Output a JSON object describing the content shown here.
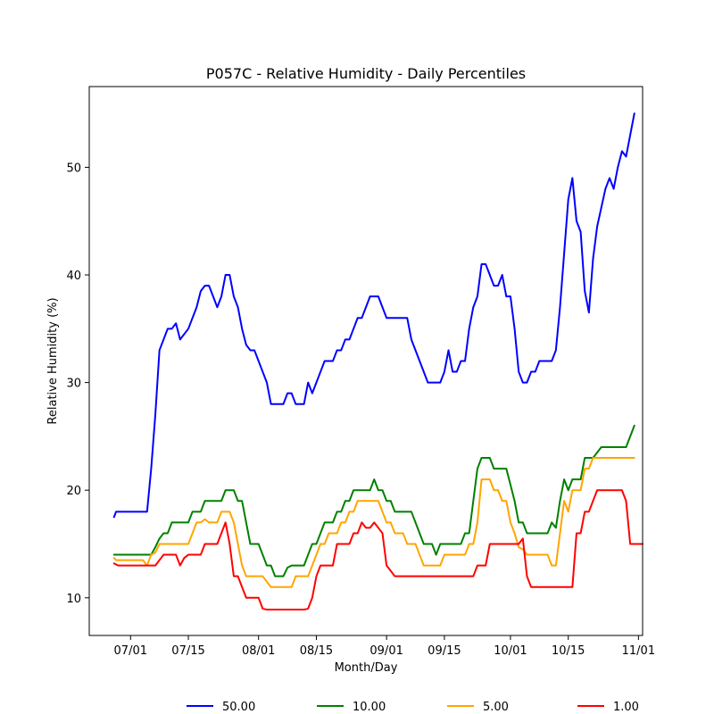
{
  "chart_data": {
    "type": "line",
    "title": "P057C - Relative Humidity - Daily Percentiles",
    "xlabel": "Month/Day",
    "ylabel": "Relative Humidity (%)",
    "x_unit": "day of year",
    "xlim": [
      172,
      306
    ],
    "ylim": [
      6.5,
      57.5
    ],
    "x_ticks": [
      {
        "value": 182,
        "label": "07/01"
      },
      {
        "value": 196,
        "label": "07/15"
      },
      {
        "value": 213,
        "label": "08/01"
      },
      {
        "value": 227,
        "label": "08/15"
      },
      {
        "value": 244,
        "label": "09/01"
      },
      {
        "value": 258,
        "label": "09/15"
      },
      {
        "value": 274,
        "label": "10/01"
      },
      {
        "value": 288,
        "label": "10/15"
      },
      {
        "value": 305,
        "label": "11/01"
      }
    ],
    "y_ticks": [
      {
        "value": 10,
        "label": "10"
      },
      {
        "value": 20,
        "label": "20"
      },
      {
        "value": 30,
        "label": "30"
      },
      {
        "value": 40,
        "label": "40"
      },
      {
        "value": 50,
        "label": "50"
      }
    ],
    "grid": false,
    "legend_position": "bottom-center",
    "series": [
      {
        "name": "50.00",
        "color": "#0000ff",
        "points": [
          [
            178,
            17.5
          ],
          [
            178.5,
            18
          ],
          [
            186,
            18
          ],
          [
            187,
            22
          ],
          [
            188,
            27
          ],
          [
            189,
            33
          ],
          [
            191,
            35
          ],
          [
            192,
            35
          ],
          [
            193,
            35.5
          ],
          [
            194,
            34
          ],
          [
            196,
            35
          ],
          [
            198,
            37
          ],
          [
            199,
            38.5
          ],
          [
            200,
            39
          ],
          [
            201,
            39
          ],
          [
            202,
            38
          ],
          [
            203,
            37
          ],
          [
            204,
            38
          ],
          [
            205,
            40
          ],
          [
            206,
            40
          ],
          [
            207,
            38
          ],
          [
            208,
            37
          ],
          [
            209,
            35
          ],
          [
            210,
            33.5
          ],
          [
            211,
            33
          ],
          [
            212,
            33
          ],
          [
            213,
            32
          ],
          [
            214,
            31
          ],
          [
            215,
            30
          ],
          [
            216,
            28
          ],
          [
            219,
            28
          ],
          [
            220,
            29
          ],
          [
            221,
            29
          ],
          [
            222,
            28
          ],
          [
            224,
            28
          ],
          [
            225,
            30
          ],
          [
            226,
            29
          ],
          [
            227,
            30
          ],
          [
            228,
            31
          ],
          [
            229,
            32
          ],
          [
            231,
            32
          ],
          [
            232,
            33
          ],
          [
            233,
            33
          ],
          [
            234,
            34
          ],
          [
            235,
            34
          ],
          [
            236,
            35
          ],
          [
            237,
            36
          ],
          [
            238,
            36
          ],
          [
            239,
            37
          ],
          [
            240,
            38
          ],
          [
            242,
            38
          ],
          [
            243,
            37
          ],
          [
            244,
            36
          ],
          [
            249,
            36
          ],
          [
            250,
            34
          ],
          [
            254,
            30
          ],
          [
            257,
            30
          ],
          [
            258,
            31
          ],
          [
            259,
            33
          ],
          [
            260,
            31
          ],
          [
            261,
            31
          ],
          [
            262,
            32
          ],
          [
            263,
            32
          ],
          [
            264,
            35
          ],
          [
            265,
            37
          ],
          [
            266,
            38
          ],
          [
            267,
            41
          ],
          [
            268,
            41
          ],
          [
            270,
            39
          ],
          [
            271,
            39
          ],
          [
            272,
            40
          ],
          [
            273,
            38
          ],
          [
            274,
            38
          ],
          [
            275,
            35
          ],
          [
            276,
            31
          ],
          [
            277,
            30
          ],
          [
            278,
            30
          ],
          [
            279,
            31
          ],
          [
            280,
            31
          ],
          [
            281,
            32
          ],
          [
            284,
            32
          ],
          [
            285,
            33
          ],
          [
            286,
            37
          ],
          [
            287,
            42
          ],
          [
            288,
            47
          ],
          [
            289,
            49
          ],
          [
            290,
            45
          ],
          [
            291,
            44
          ],
          [
            292,
            38.5
          ],
          [
            293,
            36.5
          ],
          [
            294,
            41.5
          ],
          [
            295,
            44.5
          ],
          [
            297,
            48
          ],
          [
            298,
            49
          ],
          [
            299,
            48
          ],
          [
            300,
            50
          ],
          [
            301,
            51.5
          ],
          [
            302,
            51
          ],
          [
            304,
            55
          ]
        ]
      },
      {
        "name": "10.00",
        "color": "#008000",
        "points": [
          [
            178,
            14
          ],
          [
            187,
            14
          ],
          [
            188,
            14.7
          ],
          [
            189,
            15.5
          ],
          [
            190,
            16
          ],
          [
            191,
            16
          ],
          [
            192,
            17
          ],
          [
            196,
            17
          ],
          [
            197,
            18
          ],
          [
            199,
            18
          ],
          [
            200,
            19
          ],
          [
            204,
            19
          ],
          [
            205,
            20
          ],
          [
            207,
            20
          ],
          [
            208,
            19
          ],
          [
            209,
            19
          ],
          [
            210,
            17
          ],
          [
            211,
            15
          ],
          [
            213,
            15
          ],
          [
            214,
            14
          ],
          [
            215,
            13
          ],
          [
            216,
            13
          ],
          [
            217,
            12
          ],
          [
            219,
            12
          ],
          [
            220,
            12.8
          ],
          [
            221,
            13
          ],
          [
            224,
            13
          ],
          [
            225,
            14
          ],
          [
            226,
            15
          ],
          [
            227,
            15
          ],
          [
            228,
            16
          ],
          [
            229,
            17
          ],
          [
            231,
            17
          ],
          [
            232,
            18
          ],
          [
            233,
            18
          ],
          [
            234,
            19
          ],
          [
            235,
            19
          ],
          [
            236,
            20
          ],
          [
            240,
            20
          ],
          [
            241,
            21
          ],
          [
            242,
            20
          ],
          [
            243,
            20
          ],
          [
            244,
            19
          ],
          [
            245,
            19
          ],
          [
            246,
            18
          ],
          [
            250,
            18
          ],
          [
            251,
            17
          ],
          [
            253,
            15
          ],
          [
            255,
            15
          ],
          [
            256,
            14
          ],
          [
            257,
            15
          ],
          [
            262,
            15
          ],
          [
            263,
            16
          ],
          [
            264,
            16
          ],
          [
            265,
            19
          ],
          [
            266,
            22
          ],
          [
            267,
            23
          ],
          [
            269,
            23
          ],
          [
            270,
            22
          ],
          [
            273,
            22
          ],
          [
            274,
            20.5
          ],
          [
            275,
            19
          ],
          [
            276,
            17
          ],
          [
            277,
            17
          ],
          [
            278,
            16
          ],
          [
            283,
            16
          ],
          [
            284,
            17
          ],
          [
            285,
            16.5
          ],
          [
            286,
            19
          ],
          [
            287,
            21
          ],
          [
            288,
            20
          ],
          [
            289,
            21
          ],
          [
            291,
            21
          ],
          [
            292,
            23
          ],
          [
            294,
            23
          ],
          [
            295,
            23.5
          ],
          [
            296,
            24
          ],
          [
            301,
            24
          ],
          [
            302,
            24
          ],
          [
            304,
            26
          ]
        ]
      },
      {
        "name": "5.00",
        "color": "#ffa500",
        "points": [
          [
            178,
            13.7
          ],
          [
            178.5,
            13.5
          ],
          [
            185,
            13.5
          ],
          [
            186,
            13
          ],
          [
            187,
            14
          ],
          [
            188,
            14.2
          ],
          [
            189,
            15
          ],
          [
            195,
            15
          ],
          [
            196,
            15
          ],
          [
            197,
            16
          ],
          [
            198,
            17
          ],
          [
            199,
            17
          ],
          [
            200,
            17.3
          ],
          [
            201,
            17
          ],
          [
            203,
            17
          ],
          [
            204,
            18
          ],
          [
            206,
            18
          ],
          [
            207,
            17
          ],
          [
            208,
            15
          ],
          [
            209,
            13
          ],
          [
            210,
            12
          ],
          [
            214,
            12
          ],
          [
            215,
            11.5
          ],
          [
            216,
            11
          ],
          [
            221,
            11
          ],
          [
            222,
            12
          ],
          [
            225,
            12
          ],
          [
            226,
            13
          ],
          [
            227,
            14
          ],
          [
            228,
            15
          ],
          [
            229,
            15
          ],
          [
            230,
            16
          ],
          [
            232,
            16
          ],
          [
            233,
            17
          ],
          [
            234,
            17
          ],
          [
            235,
            18
          ],
          [
            236,
            18
          ],
          [
            237,
            19
          ],
          [
            242,
            19
          ],
          [
            243,
            18
          ],
          [
            244,
            17
          ],
          [
            245,
            17
          ],
          [
            246,
            16
          ],
          [
            248,
            16
          ],
          [
            249,
            15
          ],
          [
            251,
            15
          ],
          [
            252,
            14
          ],
          [
            253,
            13
          ],
          [
            257,
            13
          ],
          [
            258,
            14
          ],
          [
            263,
            14
          ],
          [
            264,
            15
          ],
          [
            265,
            15
          ],
          [
            266,
            17
          ],
          [
            267,
            21
          ],
          [
            269,
            21
          ],
          [
            270,
            20
          ],
          [
            271,
            20
          ],
          [
            272,
            19
          ],
          [
            273,
            19
          ],
          [
            274,
            17
          ],
          [
            275,
            16
          ],
          [
            276,
            14.7
          ],
          [
            277,
            14.5
          ],
          [
            278,
            14
          ],
          [
            283,
            14
          ],
          [
            284,
            13
          ],
          [
            285,
            13
          ],
          [
            286,
            16
          ],
          [
            287,
            19
          ],
          [
            288,
            18
          ],
          [
            289,
            20
          ],
          [
            291,
            20
          ],
          [
            292,
            22
          ],
          [
            293,
            22
          ],
          [
            294,
            23
          ],
          [
            304,
            23
          ]
        ]
      },
      {
        "name": "1.00",
        "color": "#ff0000",
        "points": [
          [
            178,
            13.2
          ],
          [
            179,
            13
          ],
          [
            188,
            13
          ],
          [
            190,
            14
          ],
          [
            193,
            14
          ],
          [
            194,
            13
          ],
          [
            195,
            13.7
          ],
          [
            196,
            14
          ],
          [
            199,
            14
          ],
          [
            200,
            15
          ],
          [
            203,
            15
          ],
          [
            205,
            17
          ],
          [
            206,
            15
          ],
          [
            207,
            12
          ],
          [
            208,
            12
          ],
          [
            209,
            11
          ],
          [
            210,
            10
          ],
          [
            213,
            10
          ],
          [
            214,
            9
          ],
          [
            215,
            8.9
          ],
          [
            224,
            8.9
          ],
          [
            225,
            9
          ],
          [
            226,
            10
          ],
          [
            227,
            12
          ],
          [
            228,
            13
          ],
          [
            231,
            13
          ],
          [
            232,
            15
          ],
          [
            235,
            15
          ],
          [
            236,
            16
          ],
          [
            237,
            16
          ],
          [
            238,
            17
          ],
          [
            239,
            16.5
          ],
          [
            240,
            16.5
          ],
          [
            241,
            17
          ],
          [
            243,
            16
          ],
          [
            244,
            13
          ],
          [
            245,
            12.5
          ],
          [
            246,
            12
          ],
          [
            265,
            12
          ],
          [
            266,
            13
          ],
          [
            268,
            13
          ],
          [
            269,
            15
          ],
          [
            276,
            15
          ],
          [
            277,
            15.5
          ],
          [
            278,
            12
          ],
          [
            279,
            11
          ],
          [
            289,
            11
          ],
          [
            290,
            16
          ],
          [
            291,
            16
          ],
          [
            292,
            18
          ],
          [
            293,
            18
          ],
          [
            294,
            19
          ],
          [
            295,
            20
          ],
          [
            301,
            20
          ],
          [
            302,
            19
          ],
          [
            303,
            15
          ],
          [
            306,
            15
          ]
        ]
      }
    ]
  }
}
